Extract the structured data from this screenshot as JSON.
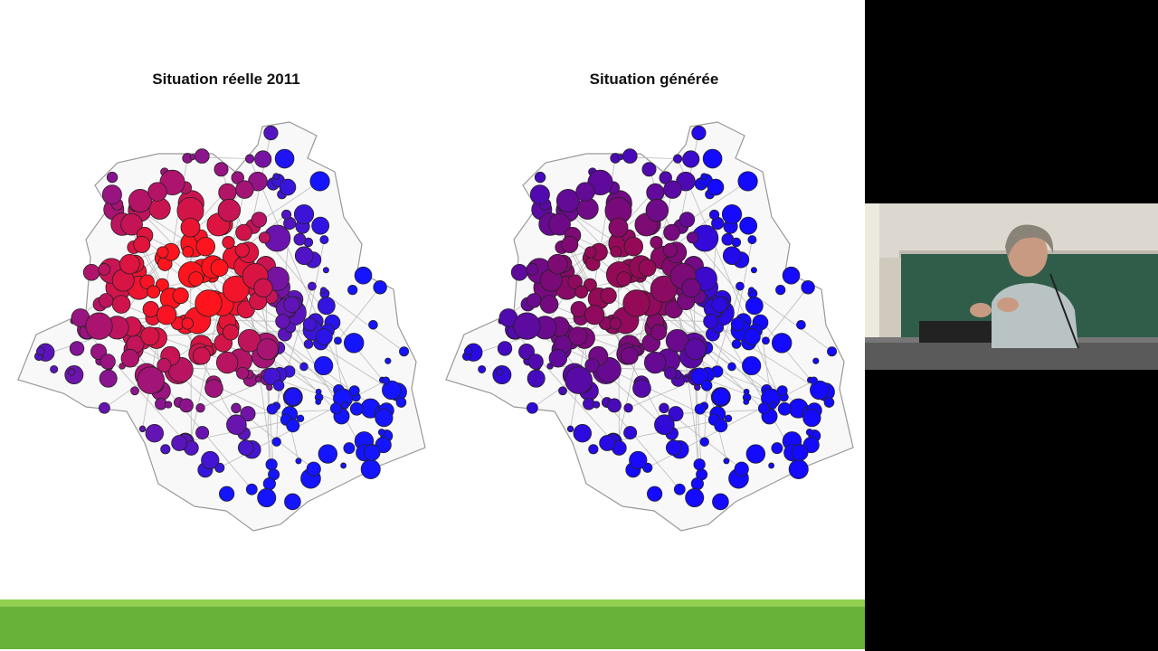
{
  "slide": {
    "maps": [
      {
        "title": "Situation réelle 2011",
        "palette": "red-to-blue"
      },
      {
        "title": "Situation générée",
        "palette": "crimson-to-blue"
      }
    ],
    "colors": {
      "high": "#ff1a00",
      "low": "#1a1aff",
      "outline": "#999999",
      "footer": "#68b23a",
      "footer_highlight": "#92d050"
    }
  },
  "video": {
    "description_visible": false
  }
}
